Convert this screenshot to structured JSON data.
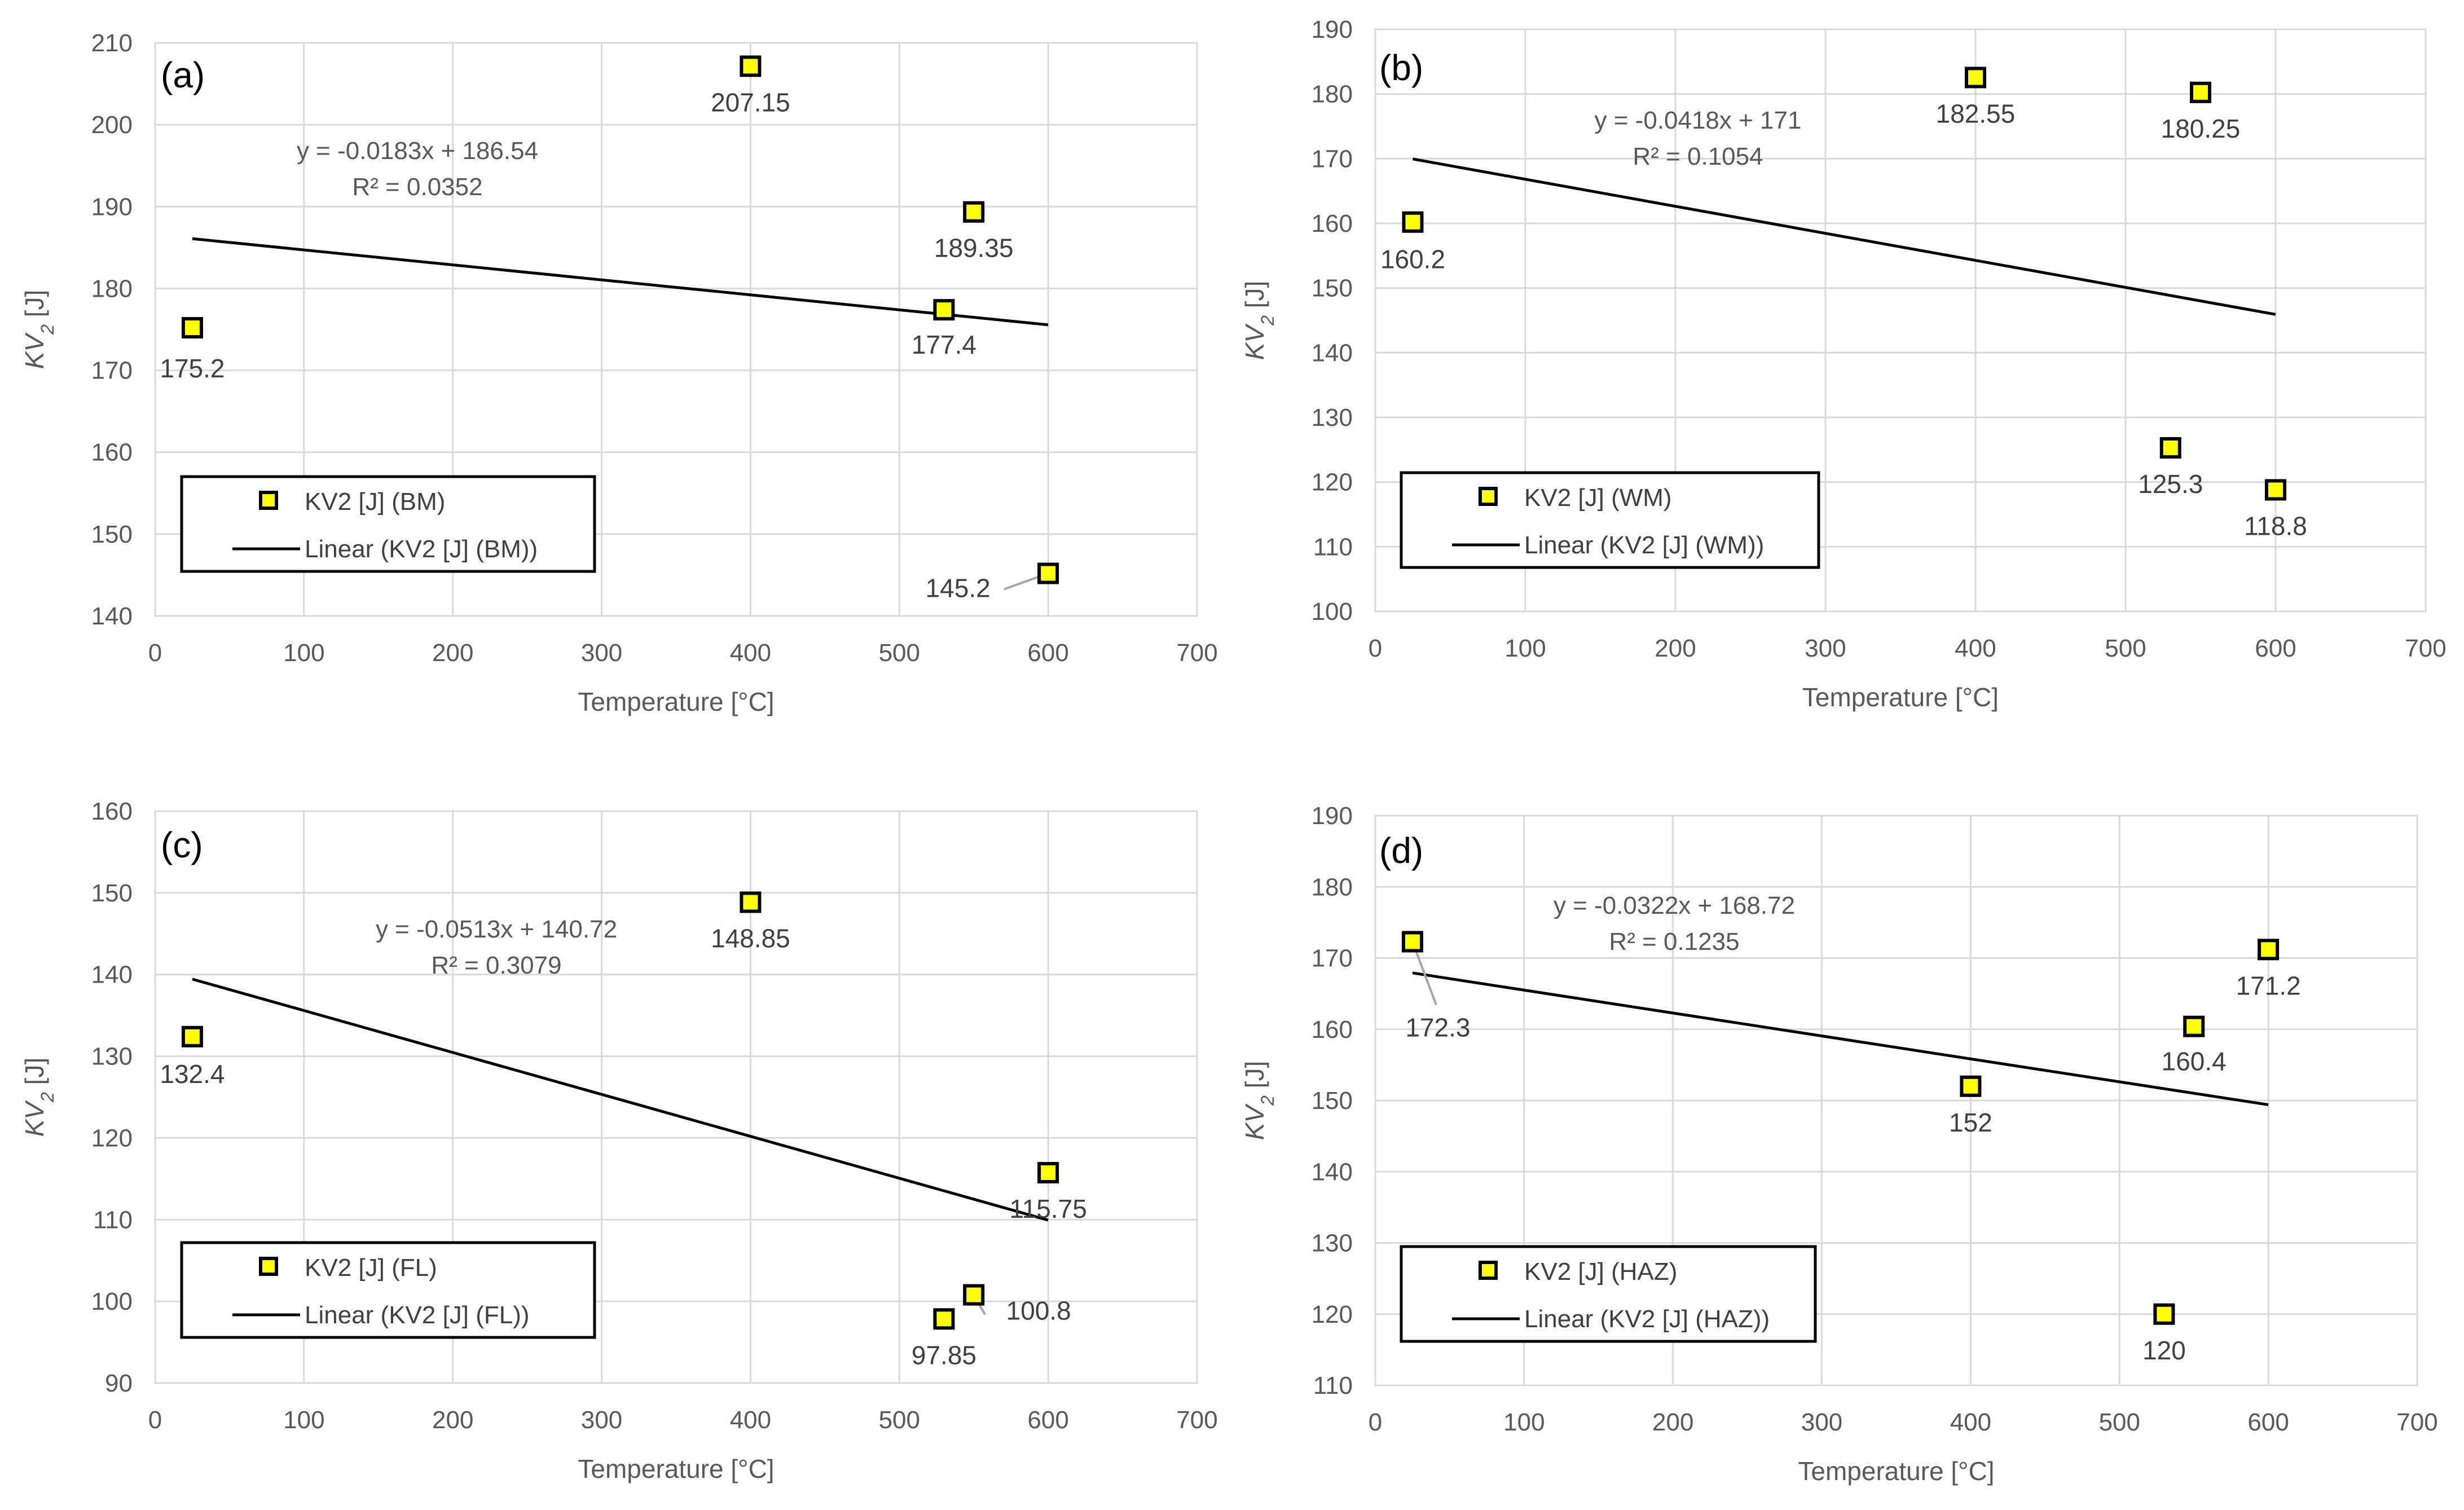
{
  "chart_data": [
    {
      "type": "scatter",
      "panel": "(a)",
      "xlabel": "Temperature [°C]",
      "ylabel": "KV",
      "ylabel_sub": "2",
      "ylabel_unit": " [J]",
      "xlim": [
        0,
        700
      ],
      "ylim": [
        140,
        210
      ],
      "xticks": [
        0,
        100,
        200,
        300,
        400,
        500,
        600,
        700
      ],
      "yticks": [
        140,
        150,
        160,
        170,
        180,
        190,
        200,
        210
      ],
      "series": [
        {
          "name": "KV2 [J] (BM)",
          "x": [
            25,
            400,
            530,
            550,
            600
          ],
          "y": [
            175.2,
            207.15,
            177.4,
            189.35,
            145.2
          ],
          "labels": [
            "175.2",
            "207.15",
            "177.4",
            "189.35",
            "145.2"
          ]
        }
      ],
      "trendline": {
        "name": "Linear (KV2 [J] (BM))",
        "slope": -0.0183,
        "intercept": 186.54,
        "x_range": [
          25,
          600
        ],
        "equation": "y = -0.0183x + 186.54",
        "r2": "R² = 0.0352"
      },
      "grid": true,
      "legend": "bottom-left"
    },
    {
      "type": "scatter",
      "panel": "(b)",
      "xlabel": "Temperature [°C]",
      "ylabel": "KV",
      "ylabel_sub": "2",
      "ylabel_unit": " [J]",
      "xlim": [
        0,
        700
      ],
      "ylim": [
        100,
        190
      ],
      "xticks": [
        0,
        100,
        200,
        300,
        400,
        500,
        600,
        700
      ],
      "yticks": [
        100,
        110,
        120,
        130,
        140,
        150,
        160,
        170,
        180,
        190
      ],
      "series": [
        {
          "name": "KV2 [J] (WM)",
          "x": [
            25,
            400,
            530,
            550,
            600
          ],
          "y": [
            160.2,
            182.55,
            125.3,
            180.25,
            118.8
          ],
          "labels": [
            "160.2",
            "182.55",
            "125.3",
            "180.25",
            "118.8"
          ]
        }
      ],
      "trendline": {
        "name": "Linear (KV2 [J] (WM))",
        "slope": -0.0418,
        "intercept": 171,
        "x_range": [
          25,
          600
        ],
        "equation": "y = -0.0418x + 171",
        "r2": "R² = 0.1054"
      },
      "grid": true,
      "legend": "bottom-left"
    },
    {
      "type": "scatter",
      "panel": "(c)",
      "xlabel": "Temperature [°C]",
      "ylabel": "KV",
      "ylabel_sub": "2",
      "ylabel_unit": " [J]",
      "xlim": [
        0,
        700
      ],
      "ylim": [
        90,
        160
      ],
      "xticks": [
        0,
        100,
        200,
        300,
        400,
        500,
        600,
        700
      ],
      "yticks": [
        90,
        100,
        110,
        120,
        130,
        140,
        150,
        160
      ],
      "series": [
        {
          "name": "KV2 [J] (FL)",
          "x": [
            25,
            400,
            530,
            550,
            600
          ],
          "y": [
            132.4,
            148.85,
            97.85,
            100.8,
            115.75
          ],
          "labels": [
            "132.4",
            "148.85",
            "97.85",
            "100.8",
            "115.75"
          ]
        }
      ],
      "trendline": {
        "name": "Linear (KV2 [J] (FL))",
        "slope": -0.0513,
        "intercept": 140.72,
        "x_range": [
          25,
          600
        ],
        "equation": "y = -0.0513x + 140.72",
        "r2": "R² = 0.3079"
      },
      "grid": true,
      "legend": "bottom-left"
    },
    {
      "type": "scatter",
      "panel": "(d)",
      "xlabel": "Temperature [°C]",
      "ylabel": "KV",
      "ylabel_sub": "2",
      "ylabel_unit": " [J]",
      "xlim": [
        0,
        700
      ],
      "ylim": [
        110,
        190
      ],
      "xticks": [
        0,
        100,
        200,
        300,
        400,
        500,
        600,
        700
      ],
      "yticks": [
        110,
        120,
        130,
        140,
        150,
        160,
        170,
        180,
        190
      ],
      "series": [
        {
          "name": "KV2 [J] (HAZ)",
          "x": [
            25,
            400,
            530,
            550,
            600
          ],
          "y": [
            172.3,
            152,
            120,
            160.4,
            171.2
          ],
          "labels": [
            "172.3",
            "152",
            "120",
            "160.4",
            "171.2"
          ]
        }
      ],
      "trendline": {
        "name": "Linear (KV2 [J] (HAZ))",
        "slope": -0.0322,
        "intercept": 168.72,
        "x_range": [
          25,
          600
        ],
        "equation": "y = -0.0322x + 168.72",
        "r2": "R² = 0.1235"
      },
      "grid": true,
      "legend": "bottom-left"
    }
  ],
  "colors": {
    "marker_fill": "#ffff00",
    "marker_edge": "#000000",
    "trendline": "#000000",
    "grid": "#d9d9d9",
    "leader": "#a6a6a6"
  }
}
